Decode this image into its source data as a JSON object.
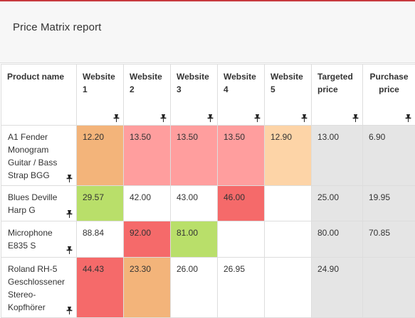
{
  "panel": {
    "title": "Price Matrix report",
    "accent_color": "#c7393e"
  },
  "table": {
    "headers": [
      {
        "label": "Product name"
      },
      {
        "label": "Website 1"
      },
      {
        "label": "Website 2"
      },
      {
        "label": "Website 3"
      },
      {
        "label": "Website 4"
      },
      {
        "label": "Website 5"
      },
      {
        "label": "Targeted price"
      },
      {
        "label": "Purchase price"
      }
    ],
    "pin_icon": "pushpin-icon",
    "cell_colors": {
      "orange": "#f3b47a",
      "pink": "#ff9e9e",
      "peach": "#fdd4a7",
      "green": "#b9df6a",
      "red": "#f56a6a",
      "grey": "#e5e5e5"
    },
    "rows": [
      {
        "name": "A1 Fender Monogram Guitar / Bass Strap BGG",
        "cells": [
          {
            "value": "12.20",
            "color": "orange"
          },
          {
            "value": "13.50",
            "color": "pink"
          },
          {
            "value": "13.50",
            "color": "pink"
          },
          {
            "value": "13.50",
            "color": "pink"
          },
          {
            "value": "12.90",
            "color": "peach"
          },
          {
            "value": "13.00",
            "color": "grey"
          },
          {
            "value": "6.90",
            "color": "grey"
          }
        ]
      },
      {
        "name": "Blues Deville Harp G",
        "cells": [
          {
            "value": "29.57",
            "color": "green"
          },
          {
            "value": "42.00",
            "color": "white"
          },
          {
            "value": "43.00",
            "color": "white"
          },
          {
            "value": "46.00",
            "color": "red"
          },
          {
            "value": "",
            "color": "white"
          },
          {
            "value": "25.00",
            "color": "grey"
          },
          {
            "value": "19.95",
            "color": "grey"
          }
        ]
      },
      {
        "name": "Microphone E835 S",
        "cells": [
          {
            "value": "88.84",
            "color": "white"
          },
          {
            "value": "92.00",
            "color": "red"
          },
          {
            "value": "81.00",
            "color": "green"
          },
          {
            "value": "",
            "color": "white"
          },
          {
            "value": "",
            "color": "white"
          },
          {
            "value": "80.00",
            "color": "grey"
          },
          {
            "value": "70.85",
            "color": "grey"
          }
        ]
      },
      {
        "name": "Roland RH-5 Geschlossener Stereo-Kopfhörer",
        "cells": [
          {
            "value": "44.43",
            "color": "red"
          },
          {
            "value": "23.30",
            "color": "orange"
          },
          {
            "value": "26.00",
            "color": "white"
          },
          {
            "value": "26.95",
            "color": "white"
          },
          {
            "value": "",
            "color": "white"
          },
          {
            "value": "24.90",
            "color": "grey"
          },
          {
            "value": "",
            "color": "grey"
          }
        ]
      }
    ]
  }
}
